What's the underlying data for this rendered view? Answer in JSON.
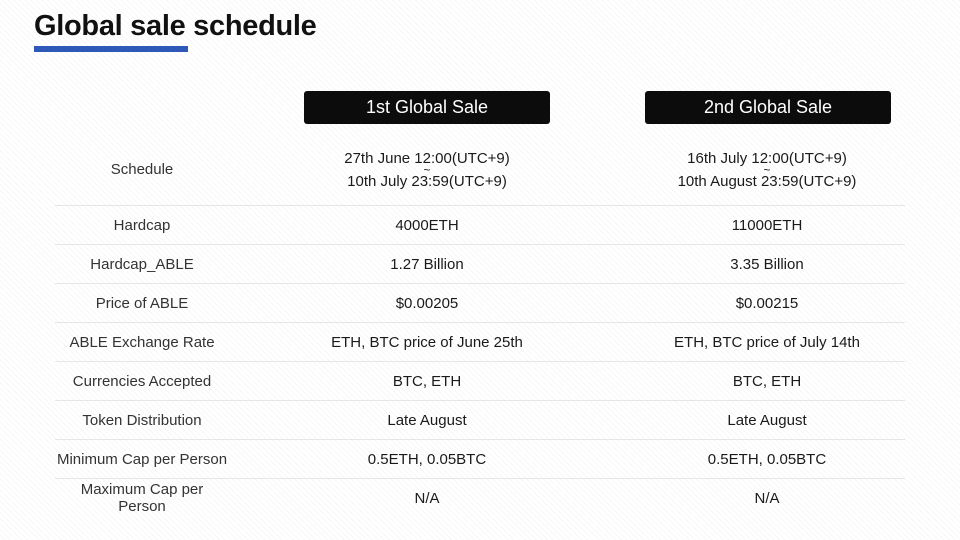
{
  "header": {
    "title": "Global sale schedule"
  },
  "columns": [
    "1st Global Sale",
    "2nd Global Sale"
  ],
  "schedule": {
    "label": "Schedule",
    "sale1": {
      "start": "27th June 12:00(UTC+9)",
      "sep": "~",
      "end": "10th July 23:59(UTC+9)"
    },
    "sale2": {
      "start": "16th July 12:00(UTC+9)",
      "sep": "~",
      "end": "10th August 23:59(UTC+9)"
    }
  },
  "rows": [
    {
      "label": "Hardcap",
      "sale1": "4000ETH",
      "sale2": "11000ETH"
    },
    {
      "label": "Hardcap_ABLE",
      "sale1": "1.27 Billion",
      "sale2": "3.35 Billion"
    },
    {
      "label": "Price of ABLE",
      "sale1": "$0.00205",
      "sale2": "$0.00215"
    },
    {
      "label": "ABLE Exchange Rate",
      "sale1": "ETH, BTC price of June 25th",
      "sale2": "ETH, BTC price of July 14th"
    },
    {
      "label": "Currencies Accepted",
      "sale1": "BTC, ETH",
      "sale2": "BTC, ETH"
    },
    {
      "label": "Token Distribution",
      "sale1": "Late August",
      "sale2": "Late August"
    },
    {
      "label": "Minimum Cap per Person",
      "sale1": "0.5ETH, 0.05BTC",
      "sale2": "0.5ETH, 0.05BTC"
    },
    {
      "label": "Maximum Cap per Person",
      "sale1": "N/A",
      "sale2": "N/A"
    }
  ],
  "colors": {
    "accent": "#2e59b8",
    "header_bg": "#0c0c0c"
  }
}
